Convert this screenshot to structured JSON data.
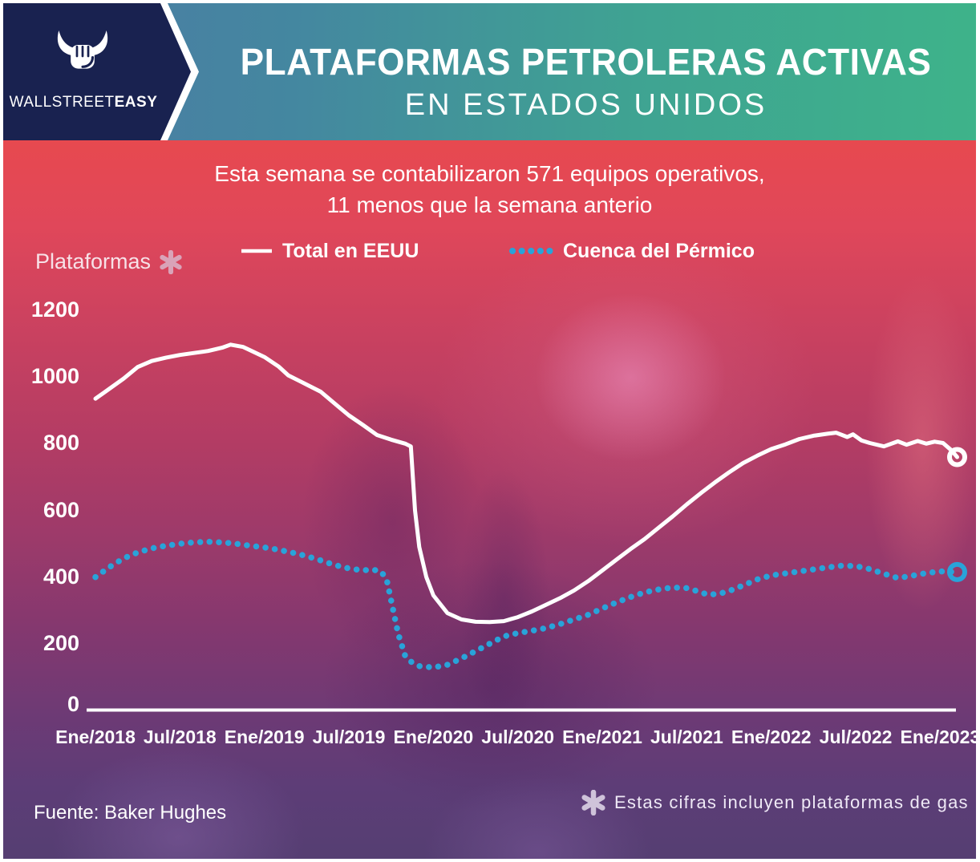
{
  "brand": {
    "name_light": "WALLSTREET",
    "name_bold": "EASY"
  },
  "header": {
    "title_line1": "PLATAFORMAS PETROLERAS ACTIVAS",
    "title_line2": "EN ESTADOS UNIDOS"
  },
  "subtitle": {
    "line1": "Esta semana se contabilizaron 571 equipos operativos,",
    "line2": "11 menos que la semana anterio"
  },
  "axis_title": "Plataformas",
  "footer": {
    "source": "Fuente: Baker Hughes",
    "note": "Estas cifras incluyen plataformas de gas"
  },
  "colors": {
    "navy": "#192250",
    "banner_blue": "#4d7aa4",
    "banner_green": "#3eb38a",
    "line_total": "#ffffff",
    "line_permian": "#29a3d9",
    "asterisk_pink": "#d9a3b8",
    "asterisk_gray": "#cfc3da"
  },
  "chart_data": {
    "type": "line",
    "title": "Plataformas petroleras activas en Estados Unidos",
    "xlabel": "",
    "ylabel": "Plataformas",
    "x_unit": "months since Jan 2018",
    "x_ticks": [
      "Ene/2018",
      "Jul/2018",
      "Ene/2019",
      "Jul/2019",
      "Ene/2020",
      "Jul/2020",
      "Ene/2021",
      "Jul/2021",
      "Ene/2022",
      "Jul/2022",
      "Ene/2023"
    ],
    "x_tick_month_index": [
      0,
      6,
      12,
      18,
      24,
      30,
      36,
      42,
      48,
      54,
      60
    ],
    "y_ticks": [
      0,
      200,
      400,
      600,
      800,
      1000,
      1200
    ],
    "ylim": [
      0,
      1200
    ],
    "grid": false,
    "legend_position": "top",
    "latest_week_total": 571,
    "weekly_change": -11,
    "series": [
      {
        "name": "Total en EEUU",
        "style": "solid",
        "color": "#ffffff",
        "end_marker": true,
        "points": [
          [
            0,
            935
          ],
          [
            1,
            965
          ],
          [
            2,
            995
          ],
          [
            3,
            1030
          ],
          [
            4,
            1048
          ],
          [
            5,
            1058
          ],
          [
            6,
            1066
          ],
          [
            7,
            1072
          ],
          [
            8,
            1078
          ],
          [
            9,
            1088
          ],
          [
            9.6,
            1097
          ],
          [
            10.5,
            1090
          ],
          [
            11,
            1080
          ],
          [
            12,
            1060
          ],
          [
            13,
            1032
          ],
          [
            13.7,
            1005
          ],
          [
            14.5,
            988
          ],
          [
            16,
            956
          ],
          [
            17,
            920
          ],
          [
            18,
            885
          ],
          [
            19,
            856
          ],
          [
            20,
            826
          ],
          [
            21,
            812
          ],
          [
            22,
            800
          ],
          [
            22.4,
            792
          ],
          [
            22.7,
            600
          ],
          [
            23,
            490
          ],
          [
            23.5,
            400
          ],
          [
            24,
            345
          ],
          [
            25,
            292
          ],
          [
            26,
            273
          ],
          [
            27,
            266
          ],
          [
            28,
            265
          ],
          [
            29,
            268
          ],
          [
            30,
            280
          ],
          [
            31,
            297
          ],
          [
            32,
            317
          ],
          [
            33,
            337
          ],
          [
            34,
            360
          ],
          [
            35,
            388
          ],
          [
            36,
            420
          ],
          [
            37,
            452
          ],
          [
            38,
            484
          ],
          [
            39,
            514
          ],
          [
            40,
            548
          ],
          [
            41,
            582
          ],
          [
            42,
            618
          ],
          [
            43,
            652
          ],
          [
            44,
            684
          ],
          [
            45,
            714
          ],
          [
            46,
            742
          ],
          [
            47,
            764
          ],
          [
            48,
            784
          ],
          [
            49,
            798
          ],
          [
            50,
            814
          ],
          [
            51,
            824
          ],
          [
            52,
            830
          ],
          [
            52.6,
            833
          ],
          [
            53.4,
            820
          ],
          [
            53.8,
            828
          ],
          [
            54.4,
            810
          ],
          [
            55,
            802
          ],
          [
            56,
            792
          ],
          [
            57,
            807
          ],
          [
            57.6,
            797
          ],
          [
            58.4,
            808
          ],
          [
            59,
            800
          ],
          [
            59.6,
            806
          ],
          [
            60.2,
            802
          ],
          [
            60.8,
            780
          ],
          [
            61.2,
            760
          ]
        ]
      },
      {
        "name": "Cuenca del Pérmico",
        "style": "dotted",
        "color": "#29a3d9",
        "end_marker": true,
        "points": [
          [
            0,
            400
          ],
          [
            1,
            430
          ],
          [
            2,
            456
          ],
          [
            3,
            474
          ],
          [
            4,
            486
          ],
          [
            5,
            494
          ],
          [
            6,
            500
          ],
          [
            7,
            504
          ],
          [
            8,
            506
          ],
          [
            9,
            504
          ],
          [
            10,
            500
          ],
          [
            11,
            494
          ],
          [
            12,
            489
          ],
          [
            13,
            482
          ],
          [
            14,
            473
          ],
          [
            15,
            463
          ],
          [
            16,
            450
          ],
          [
            17,
            436
          ],
          [
            18,
            426
          ],
          [
            19,
            420
          ],
          [
            19.6,
            423
          ],
          [
            20.3,
            417
          ],
          [
            20.7,
            390
          ],
          [
            21,
            330
          ],
          [
            21.5,
            230
          ],
          [
            22,
            163
          ],
          [
            22.5,
            143
          ],
          [
            23,
            133
          ],
          [
            24,
            129
          ],
          [
            25,
            137
          ],
          [
            26,
            156
          ],
          [
            27,
            178
          ],
          [
            28,
            200
          ],
          [
            29,
            222
          ],
          [
            30,
            232
          ],
          [
            31,
            239
          ],
          [
            32,
            247
          ],
          [
            33,
            259
          ],
          [
            34,
            273
          ],
          [
            35,
            287
          ],
          [
            36,
            306
          ],
          [
            37,
            324
          ],
          [
            38,
            340
          ],
          [
            39,
            354
          ],
          [
            40,
            363
          ],
          [
            41,
            369
          ],
          [
            42,
            367
          ],
          [
            42.8,
            357
          ],
          [
            43.5,
            347
          ],
          [
            44.3,
            350
          ],
          [
            45,
            358
          ],
          [
            46,
            375
          ],
          [
            47,
            393
          ],
          [
            48,
            405
          ],
          [
            49,
            411
          ],
          [
            50,
            417
          ],
          [
            51,
            423
          ],
          [
            52,
            429
          ],
          [
            53,
            434
          ],
          [
            54,
            433
          ],
          [
            55,
            424
          ],
          [
            56,
            410
          ],
          [
            57,
            397
          ],
          [
            58,
            404
          ],
          [
            59,
            412
          ],
          [
            60,
            417
          ],
          [
            61.2,
            415
          ]
        ]
      }
    ]
  }
}
